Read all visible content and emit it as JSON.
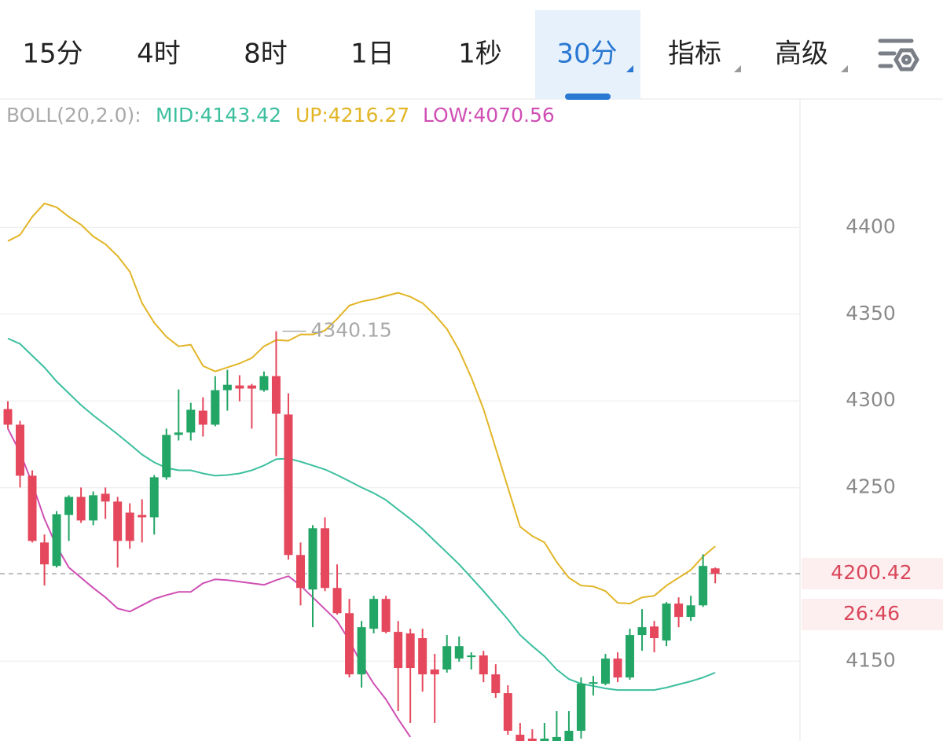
{
  "tabs": [
    {
      "label": "15分"
    },
    {
      "label": "4时"
    },
    {
      "label": "8时"
    },
    {
      "label": "1日"
    },
    {
      "label": "1秒"
    },
    {
      "label": "30分",
      "active": true,
      "dropdown": true
    },
    {
      "label": "指标",
      "dropdown": true
    },
    {
      "label": "高级",
      "dropdown": true
    }
  ],
  "chart_data": {
    "type": "candlestick",
    "indicator": "BOLL(20,2.0):",
    "up_color": "#22a565",
    "down_color": "#e5485c",
    "open": [
      4295.3,
      4286.3,
      4256.9,
      4218.4,
      4204.9,
      4234.3,
      4244.7,
      4231.1,
      4246.5,
      4242.0,
      4235.6,
      4234.3,
      4232.9,
      4256.0,
      4280.4,
      4281.8,
      4294.4,
      4286.3,
      4306.2,
      4308.9,
      4308.9,
      4306.2,
      4314.3,
      4292.2,
      4211.2,
      4191.3,
      4226.6,
      4192.2,
      4177.7,
      4142.4,
      4168.7,
      4185.9,
      4166.9,
      4166.0,
      4163.3,
      4145.2,
      4145.2,
      4151.5,
      4152.4,
      4153.3,
      4142.4,
      4131.6,
      4107.6,
      4105.4,
      4101.7,
      4103.1,
      4100.8,
      4109.9,
      4137.0,
      4137.0,
      4151.5,
      4140.6,
      4165.1,
      4170.0,
      4161.9,
      4183.2,
      4175.5,
      4182.2,
      4203.5
    ],
    "high": [
      4299.8,
      4288.5,
      4260.0,
      4223.0,
      4236.5,
      4245.6,
      4250.1,
      4247.8,
      4250.1,
      4244.7,
      4241.0,
      4243.3,
      4257.3,
      4284.0,
      4306.6,
      4298.9,
      4302.1,
      4314.3,
      4317.9,
      4314.8,
      4309.8,
      4317.0,
      4340.15,
      4304.4,
      4218.4,
      4228.4,
      4232.9,
      4205.8,
      4185.9,
      4173.2,
      4187.7,
      4187.7,
      4173.2,
      4168.7,
      4168.7,
      4154.2,
      4165.1,
      4164.2,
      4155.1,
      4156.0,
      4148.3,
      4136.1,
      4114.4,
      4110.8,
      4114.4,
      4121.2,
      4121.2,
      4140.6,
      4141.5,
      4154.2,
      4155.1,
      4168.7,
      4180.0,
      4173.2,
      4184.1,
      4186.8,
      4187.7,
      4211.6,
      4204.0
    ],
    "low": [
      4284.0,
      4250.1,
      4218.4,
      4193.6,
      4204.0,
      4219.3,
      4229.7,
      4228.4,
      4232.0,
      4204.0,
      4214.8,
      4218.4,
      4223.0,
      4254.6,
      4277.2,
      4277.2,
      4279.5,
      4285.4,
      4294.4,
      4299.8,
      4284.0,
      4305.3,
      4268.2,
      4208.5,
      4182.2,
      4169.6,
      4190.4,
      4176.8,
      4140.6,
      4134.8,
      4166.0,
      4166.0,
      4121.2,
      4114.4,
      4132.5,
      4114.4,
      4143.4,
      4149.7,
      4145.2,
      4137.9,
      4128.9,
      4107.6,
      4098.6,
      4096.3,
      4098.6,
      4098.6,
      4098.6,
      4105.4,
      4130.2,
      4136.1,
      4137.9,
      4139.3,
      4156.0,
      4155.1,
      4158.7,
      4169.6,
      4173.2,
      4181.3,
      4194.9
    ],
    "close": [
      4286.3,
      4256.9,
      4219.3,
      4205.8,
      4234.7,
      4244.7,
      4231.1,
      4245.6,
      4242.0,
      4219.3,
      4219.3,
      4232.9,
      4256.0,
      4280.4,
      4281.8,
      4294.9,
      4286.3,
      4306.2,
      4309.3,
      4307.1,
      4307.1,
      4314.3,
      4292.6,
      4211.2,
      4192.2,
      4226.6,
      4192.2,
      4177.7,
      4142.4,
      4169.6,
      4185.9,
      4166.9,
      4146.1,
      4146.1,
      4142.4,
      4142.4,
      4158.7,
      4158.7,
      4153.3,
      4142.4,
      4131.6,
      4109.9,
      4101.7,
      4101.7,
      4105.4,
      4106.3,
      4109.9,
      4137.0,
      4137.9,
      4151.5,
      4140.6,
      4165.1,
      4169.6,
      4163.3,
      4183.2,
      4175.5,
      4182.2,
      4204.9,
      4200.42
    ],
    "series": [
      {
        "name": "MID:4143.42",
        "color": "#3cbf9e",
        "values": [
          4336.0,
          4332.9,
          4326.1,
          4319.3,
          4311.2,
          4304.4,
          4297.6,
          4291.7,
          4286.3,
          4280.8,
          4275.0,
          4269.1,
          4264.6,
          4261.4,
          4260.0,
          4260.0,
          4258.2,
          4256.9,
          4257.3,
          4258.2,
          4260.0,
          4262.8,
          4266.4,
          4266.8,
          4265.0,
          4262.8,
          4260.5,
          4257.3,
          4253.7,
          4250.1,
          4246.9,
          4242.9,
          4237.4,
          4232.0,
          4226.1,
          4219.3,
          4212.6,
          4205.8,
          4198.1,
          4190.4,
          4182.2,
          4174.1,
          4165.1,
          4158.7,
          4152.8,
          4145.2,
          4139.7,
          4137.0,
          4135.7,
          4134.3,
          4133.4,
          4133.4,
          4133.4,
          4133.4,
          4134.8,
          4136.6,
          4138.4,
          4140.6,
          4143.42
        ]
      },
      {
        "name": "UP:4216.27",
        "color": "#e2b526",
        "values": [
          4392.1,
          4395.7,
          4406.1,
          4413.8,
          4411.6,
          4406.1,
          4401.6,
          4394.8,
          4390.3,
          4383.5,
          4374.5,
          4356.4,
          4345.1,
          4336.9,
          4331.5,
          4332.4,
          4320.2,
          4317.0,
          4319.3,
          4321.6,
          4324.7,
          4331.5,
          4335.1,
          4334.7,
          4338.3,
          4338.3,
          4340.6,
          4347.3,
          4355.0,
          4357.3,
          4358.6,
          4360.5,
          4362.3,
          4360.0,
          4356.4,
          4349.6,
          4341.5,
          4329.2,
          4313.4,
          4295.3,
          4272.7,
          4250.1,
          4227.5,
          4222.1,
          4218.4,
          4207.1,
          4198.1,
          4193.6,
          4193.1,
          4190.4,
          4183.6,
          4183.2,
          4186.8,
          4187.7,
          4193.6,
          4198.1,
          4202.6,
          4210.3,
          4216.27
        ]
      },
      {
        "name": "LOW:4070.56",
        "color": "#cf4fb4",
        "values": [
          4284.0,
          4270.4,
          4252.4,
          4232.0,
          4216.2,
          4204.0,
          4198.1,
          4192.2,
          4186.8,
          4180.4,
          4178.6,
          4182.2,
          4185.9,
          4188.1,
          4189.9,
          4189.9,
          4194.9,
          4197.2,
          4196.7,
          4195.8,
          4194.9,
          4194.0,
          4196.7,
          4199.0,
          4193.6,
          4186.8,
          4180.0,
          4173.2,
          4161.9,
          4148.3,
          4137.0,
          4128.0,
          4116.7,
          4106.3,
          null,
          null,
          null,
          null,
          null,
          null,
          null,
          null,
          null,
          null,
          null,
          null,
          null,
          null,
          null,
          null,
          null,
          null,
          null,
          null,
          null,
          null,
          null,
          null,
          null
        ]
      }
    ],
    "ylim": [
      4104,
      4474
    ],
    "yticks": [
      4150,
      4250,
      4300,
      4350,
      4400
    ],
    "grid": true,
    "max_label": 4340.15,
    "last_price": 4200.42,
    "countdown": "26:46"
  }
}
